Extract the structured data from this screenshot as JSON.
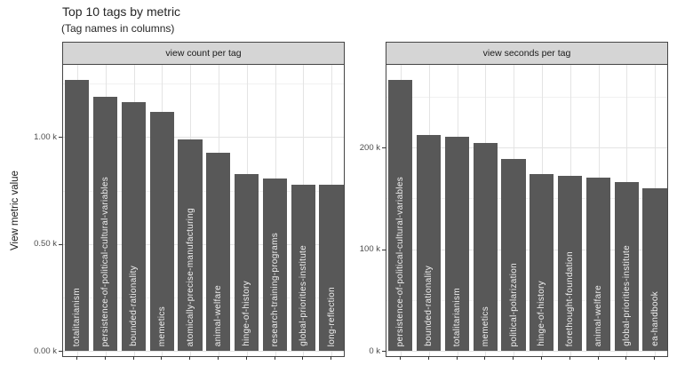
{
  "chart_data": {
    "type": "bar",
    "title": "Top 10 tags by metric",
    "subtitle": "(Tag names in columns)",
    "ylabel": "View metric value",
    "grid": "on",
    "legend": "none",
    "bar_label_placement": "inside-bottom-rotated-90",
    "facets": [
      {
        "label": "view count per tag",
        "categories": [
          "totalitarianism",
          "persistence-of-political-cultural-variables",
          "bounded-rationality",
          "memetics",
          "atomically-precise-manufacturing",
          "animal-welfare",
          "hinge-of-history",
          "research-training-programs",
          "global-priorities-institute",
          "long-reflection"
        ],
        "values": [
          1267,
          1187,
          1163,
          1118,
          988,
          928,
          827,
          807,
          778,
          776
        ],
        "ylim": [
          -25,
          1338
        ],
        "yticks": [
          {
            "value": 0,
            "label": "0.00 k"
          },
          {
            "value": 500,
            "label": "0.50 k"
          },
          {
            "value": 1000,
            "label": "1.00 k"
          }
        ],
        "yminor": [
          250,
          750,
          1250
        ]
      },
      {
        "label": "view seconds per tag",
        "categories": [
          "persistence-of-political-cultural-variables",
          "bounded-rationality",
          "totalitarianism",
          "memetics",
          "political-polarization",
          "hinge-of-history",
          "forethought-foundation",
          "animal-welfare",
          "global-priorities-institute",
          "ea-handbook"
        ],
        "values": [
          266000,
          212500,
          210500,
          204000,
          189000,
          174000,
          172500,
          170000,
          166000,
          160000
        ],
        "ylim": [
          -5200,
          281200
        ],
        "yticks": [
          {
            "value": 0,
            "label": "0 k"
          },
          {
            "value": 100000,
            "label": "100 k"
          },
          {
            "value": 200000,
            "label": "200 k"
          }
        ],
        "yminor": [
          50000,
          150000,
          250000
        ]
      }
    ],
    "colors": {
      "bar_fill": "#585858",
      "bar_label_text": "#EFEFEF",
      "strip_background": "#D5D5D5",
      "panel_border": "#454545",
      "grid_major": "#E4E4E4",
      "grid_minor": "#F1F1F1",
      "axis_text": "#4D4D4D",
      "title_text": "#262626"
    }
  }
}
